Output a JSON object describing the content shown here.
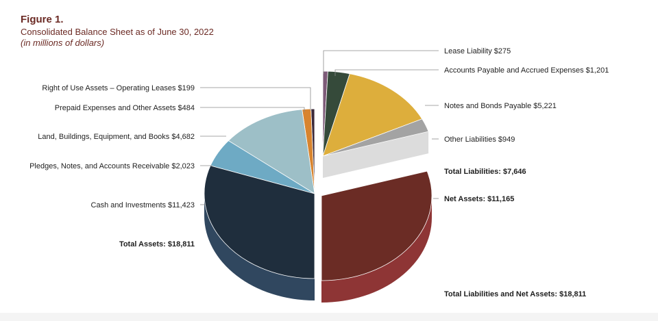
{
  "figure": {
    "title": "Figure 1.",
    "subtitle": "Consolidated Balance Sheet as of June 30, 2022",
    "units": "(in millions of dollars)"
  },
  "chart_data": {
    "type": "pie",
    "title": "Consolidated Balance Sheet as of June 30, 2022",
    "units": "millions of dollars",
    "assets": {
      "total_label": "Total Assets: $18,811",
      "total": 18811,
      "slices": [
        {
          "name": "Right of Use Assets – Operating Leases",
          "value": 199,
          "label": "Right of Use Assets – Operating Leases $199",
          "color": "#3b2a3a"
        },
        {
          "name": "Prepaid Expenses and Other Assets",
          "value": 484,
          "label": "Prepaid Expenses and Other Assets $484",
          "color": "#d8842e"
        },
        {
          "name": "Land, Buildings, Equipment, and Books",
          "value": 4682,
          "label": "Land, Buildings, Equipment, and Books $4,682",
          "color": "#9dbfc7"
        },
        {
          "name": "Pledges, Notes, and Accounts Receivable",
          "value": 2023,
          "label": "Pledges, Notes, and Accounts Receivable $2,023",
          "color": "#6eaac4"
        },
        {
          "name": "Cash and Investments",
          "value": 11423,
          "label": "Cash and Investments $11,423",
          "color": "#1f2e3d"
        }
      ]
    },
    "liabilities": {
      "total_label": "Total Liabilities: $7,646",
      "total": 7646,
      "slices": [
        {
          "name": "Lease Liability",
          "value": 275,
          "label": "Lease Liability $275",
          "color": "#7d5a78"
        },
        {
          "name": "Accounts Payable and Accrued Expenses",
          "value": 1201,
          "label": "Accounts Payable and Accrued Expenses $1,201",
          "color": "#354a3a"
        },
        {
          "name": "Notes and Bonds Payable",
          "value": 5221,
          "label": "Notes and Bonds Payable $5,221",
          "color": "#ddae3c"
        },
        {
          "name": "Other Liabilities",
          "value": 949,
          "label": "Other Liabilities $949",
          "color": "#a3a3a3"
        }
      ]
    },
    "net_assets": {
      "name": "Net Assets",
      "value": 11165,
      "label": "Net Assets: $11,165",
      "color": "#6b2c25"
    },
    "total_liabilities_and_net_assets_label": "Total Liabilities and Net Assets: $18,811",
    "total_liabilities_and_net_assets": 18811
  }
}
